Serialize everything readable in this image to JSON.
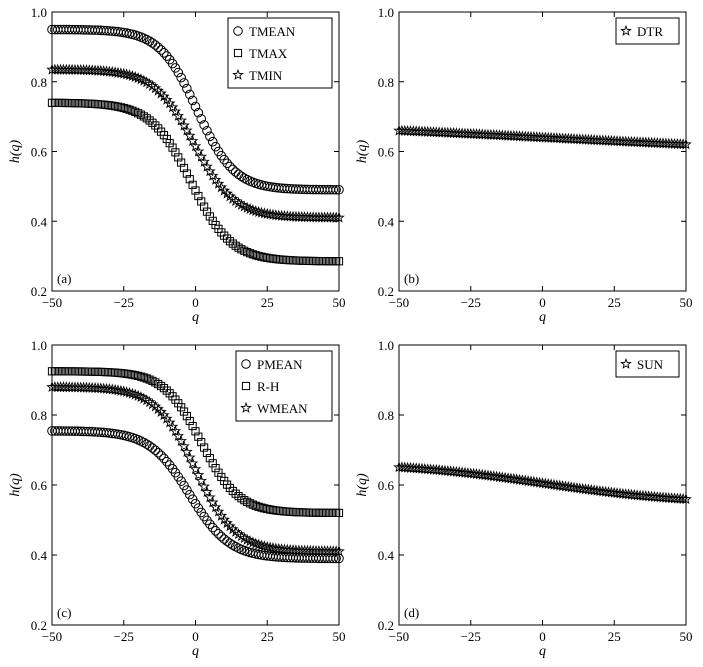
{
  "figure": {
    "panels": 4
  },
  "chart_data": [
    {
      "type": "scatter",
      "panel_label": "(a)",
      "xlabel": "q",
      "ylabel": "h(q)",
      "xlim": [
        -50,
        50
      ],
      "ylim": [
        0.2,
        1.0
      ],
      "xticks": [
        "−50",
        "−25",
        "0",
        "25",
        "50"
      ],
      "yticks": [
        "0.2",
        "0.4",
        "0.6",
        "0.8",
        "1.0"
      ],
      "legend_position": "top-right",
      "series": [
        {
          "name": "TMEAN",
          "marker": "circle",
          "hmax": 0.95,
          "hmin": 0.49,
          "q0": 0.5,
          "w": 6.5
        },
        {
          "name": "TMAX",
          "marker": "square",
          "hmax": 0.74,
          "hmin": 0.285,
          "q0": -1.5,
          "w": 7
        },
        {
          "name": "TMIN",
          "marker": "star",
          "hmax": 0.835,
          "hmin": 0.41,
          "q0": -0.5,
          "w": 7
        }
      ]
    },
    {
      "type": "scatter",
      "panel_label": "(b)",
      "xlabel": "q",
      "ylabel": "h(q)",
      "xlim": [
        -50,
        50
      ],
      "ylim": [
        0.2,
        1.0
      ],
      "xticks": [
        "−50",
        "−25",
        "0",
        "25",
        "50"
      ],
      "yticks": [
        "0.2",
        "0.4",
        "0.6",
        "0.8",
        "1.0"
      ],
      "legend_position": "top-right",
      "series": [
        {
          "name": "DTR",
          "marker": "star",
          "hmax": 0.69,
          "hmin": 0.59,
          "q0": 0,
          "w": 60
        }
      ]
    },
    {
      "type": "scatter",
      "panel_label": "(c)",
      "xlabel": "q",
      "ylabel": "h(q)",
      "xlim": [
        -50,
        50
      ],
      "ylim": [
        0.2,
        1.0
      ],
      "xticks": [
        "−50",
        "−25",
        "0",
        "25",
        "50"
      ],
      "yticks": [
        "0.2",
        "0.4",
        "0.6",
        "0.8",
        "1.0"
      ],
      "legend_position": "top-right",
      "series": [
        {
          "name": "PMEAN",
          "marker": "circle",
          "hmax": 0.755,
          "hmin": 0.39,
          "q0": -2,
          "w": 7
        },
        {
          "name": "R-H",
          "marker": "square",
          "hmax": 0.925,
          "hmin": 0.52,
          "q0": 2,
          "w": 6.5
        },
        {
          "name": "WMEAN",
          "marker": "star",
          "hmax": 0.88,
          "hmin": 0.41,
          "q0": 0,
          "w": 7
        }
      ]
    },
    {
      "type": "scatter",
      "panel_label": "(d)",
      "xlabel": "q",
      "ylabel": "h(q)",
      "xlim": [
        -50,
        50
      ],
      "ylim": [
        0.2,
        1.0
      ],
      "xticks": [
        "−50",
        "−25",
        "0",
        "25",
        "50"
      ],
      "yticks": [
        "0.2",
        "0.4",
        "0.6",
        "0.8",
        "1.0"
      ],
      "legend_position": "top-right",
      "series": [
        {
          "name": "SUN",
          "marker": "star",
          "hmax": 0.665,
          "hmin": 0.545,
          "q0": 0,
          "w": 25
        }
      ]
    }
  ]
}
